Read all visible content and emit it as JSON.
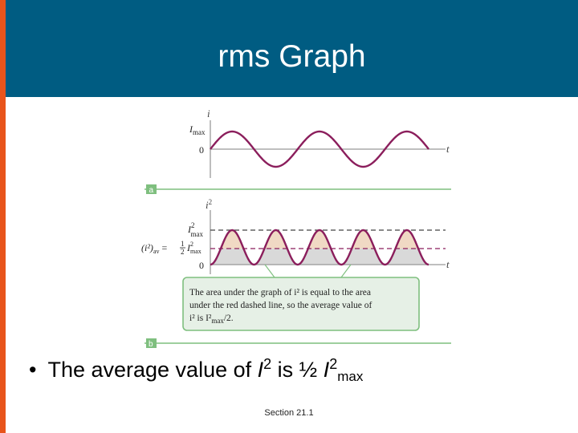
{
  "slide": {
    "title": "rms Graph",
    "bullet": {
      "text_prefix": "The average value of ",
      "i_symbol": "I",
      "exp2": "2",
      "text_middle": " is ½ ",
      "I_symbol": "I",
      "exp2b": "2",
      "sub": "max"
    },
    "footer": "Section 21.1"
  },
  "figure": {
    "panel_a": {
      "y_axis_label": "i",
      "x_axis_label": "t",
      "imax_label": "I",
      "imax_sub": "max",
      "zero_label": "0",
      "tag": "a"
    },
    "panel_b": {
      "y_axis_label": "i",
      "y_axis_exp": "2",
      "x_axis_label": "t",
      "imax2_label": "I",
      "imax2_exp": "2",
      "imax2_sub": "max",
      "avg_lhs": "(i²)",
      "avg_sub": "av",
      "avg_eq": " = ",
      "half_num": "1",
      "half_den": "2",
      "avg_rhs_I": "I",
      "avg_rhs_exp": "2",
      "avg_rhs_sub": "max",
      "zero_label": "0",
      "tag": "b"
    },
    "callout": {
      "line1": "The area under the graph of i² is equal to the area",
      "line2": "under the red dashed line, so the average value of",
      "line3_a": "i² is I²",
      "line3_sub": "max",
      "line3_b": "/2."
    },
    "colors": {
      "curve": "#8b1e5c",
      "fill_above": "#f0d9c4",
      "fill_below": "#d9d9d9",
      "green_rule": "#7fbf7f",
      "callout_border": "#7fbf7f",
      "callout_bg": "#e6f0e6"
    }
  }
}
